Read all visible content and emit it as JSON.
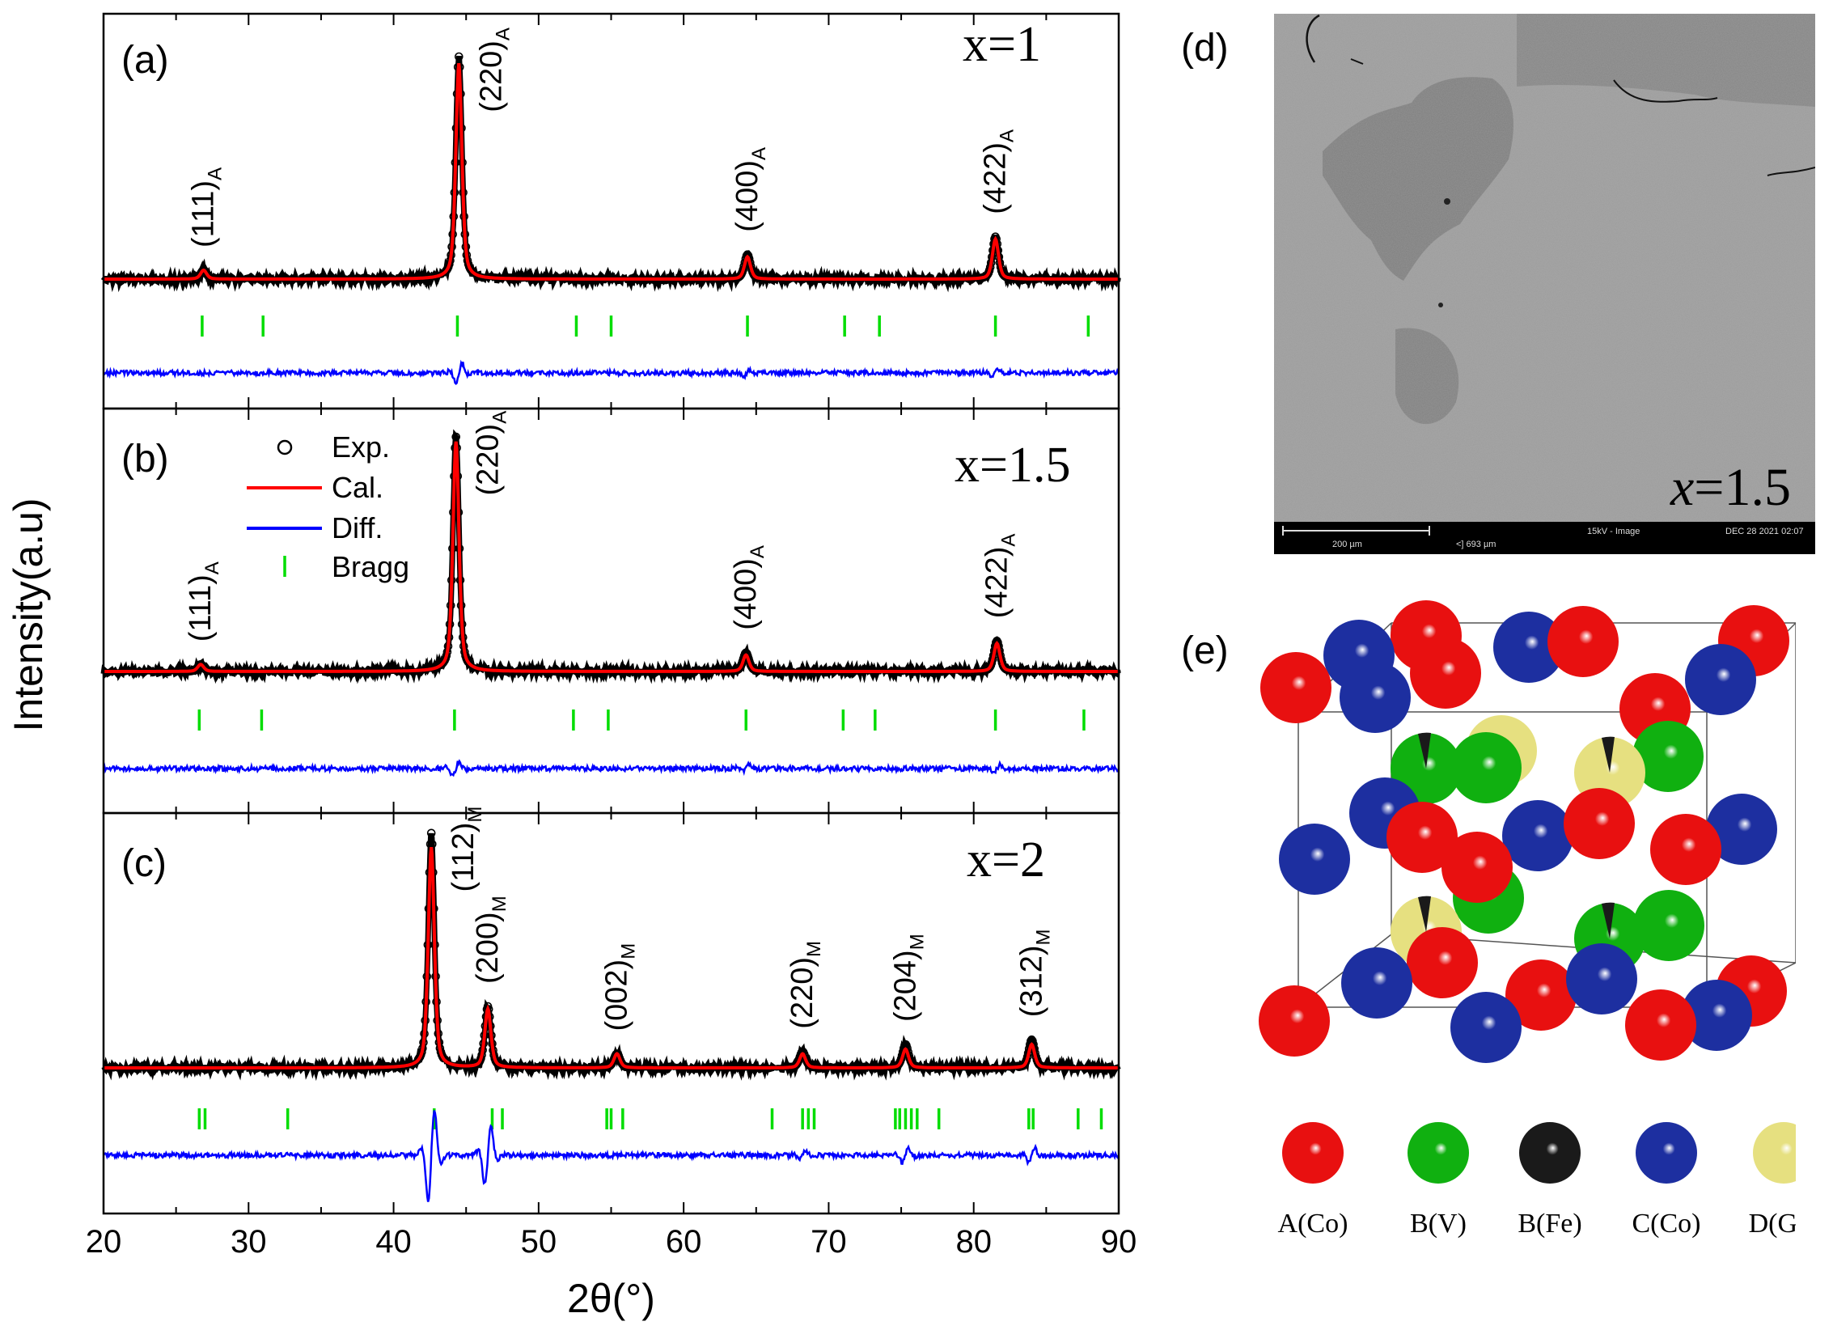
{
  "chart_data": [
    {
      "panel": "(a)",
      "type": "line",
      "composition_label": "x=1",
      "xlim": [
        20,
        90
      ],
      "xlabel": "2θ(°)",
      "ylabel": "Intensity(a.u)",
      "xticks": [
        20,
        30,
        40,
        50,
        60,
        70,
        80,
        90
      ],
      "series": [
        {
          "name": "Exp.",
          "marker": "open-circle",
          "color": "#000000",
          "peaks": [
            {
              "x": 26.9,
              "h": 0.04
            },
            {
              "x": 44.5,
              "h": 1.0
            },
            {
              "x": 64.4,
              "h": 0.11
            },
            {
              "x": 81.5,
              "h": 0.19
            }
          ]
        },
        {
          "name": "Cal.",
          "color": "#ff0000",
          "peaks": [
            {
              "x": 26.9,
              "h": 0.04
            },
            {
              "x": 44.5,
              "h": 0.97
            },
            {
              "x": 64.4,
              "h": 0.1
            },
            {
              "x": 81.5,
              "h": 0.18
            }
          ]
        },
        {
          "name": "Diff.",
          "color": "#0000ff"
        },
        {
          "name": "Bragg",
          "color": "#00e000",
          "positions": [
            26.8,
            31.0,
            44.4,
            52.6,
            55.0,
            64.4,
            71.1,
            73.5,
            81.5,
            87.9
          ]
        }
      ],
      "annotations": [
        {
          "text": "(111)",
          "sub": "A",
          "x": 26.9
        },
        {
          "text": "(220)",
          "sub": "A",
          "x": 44.5
        },
        {
          "text": "(400)",
          "sub": "A",
          "x": 64.4
        },
        {
          "text": "(422)",
          "sub": "A",
          "x": 81.5
        }
      ]
    },
    {
      "panel": "(b)",
      "type": "line",
      "composition_label": "x=1.5",
      "xlim": [
        20,
        90
      ],
      "series": [
        {
          "name": "Exp.",
          "peaks": [
            {
              "x": 26.7,
              "h": 0.03
            },
            {
              "x": 44.3,
              "h": 1.0
            },
            {
              "x": 64.3,
              "h": 0.08
            },
            {
              "x": 81.6,
              "h": 0.13
            }
          ]
        },
        {
          "name": "Cal.",
          "peaks": [
            {
              "x": 26.7,
              "h": 0.03
            },
            {
              "x": 44.3,
              "h": 0.98
            },
            {
              "x": 64.3,
              "h": 0.07
            },
            {
              "x": 81.6,
              "h": 0.12
            }
          ]
        },
        {
          "name": "Diff."
        },
        {
          "name": "Bragg",
          "positions": [
            26.6,
            30.9,
            44.2,
            52.4,
            54.8,
            64.3,
            71.0,
            73.2,
            81.5,
            87.6
          ]
        }
      ],
      "annotations": [
        {
          "text": "(111)",
          "sub": "A",
          "x": 26.7
        },
        {
          "text": "(220)",
          "sub": "A",
          "x": 44.3
        },
        {
          "text": "(400)",
          "sub": "A",
          "x": 64.3
        },
        {
          "text": "(422)",
          "sub": "A",
          "x": 81.6
        }
      ],
      "legend": {
        "placement": "top-left",
        "items": [
          "Exp.",
          "Cal.",
          "Diff.",
          "Bragg"
        ]
      }
    },
    {
      "panel": "(c)",
      "type": "line",
      "composition_label": "x=2",
      "xlim": [
        20,
        90
      ],
      "series": [
        {
          "name": "Exp.",
          "peaks": [
            {
              "x": 42.6,
              "h": 1.0
            },
            {
              "x": 46.5,
              "h": 0.26
            },
            {
              "x": 55.4,
              "h": 0.06
            },
            {
              "x": 68.2,
              "h": 0.07
            },
            {
              "x": 75.3,
              "h": 0.1
            },
            {
              "x": 84.0,
              "h": 0.12
            }
          ]
        },
        {
          "name": "Cal.",
          "peaks": [
            {
              "x": 42.6,
              "h": 0.94
            },
            {
              "x": 46.5,
              "h": 0.25
            },
            {
              "x": 55.4,
              "h": 0.06
            },
            {
              "x": 68.2,
              "h": 0.06
            },
            {
              "x": 75.3,
              "h": 0.08
            },
            {
              "x": 84.0,
              "h": 0.1
            }
          ]
        },
        {
          "name": "Diff."
        },
        {
          "name": "Bragg",
          "positions": [
            26.6,
            27.0,
            32.7,
            42.8,
            46.8,
            47.5,
            54.7,
            55.0,
            55.8,
            66.1,
            68.2,
            68.6,
            69.0,
            74.6,
            74.9,
            75.3,
            75.7,
            76.1,
            77.6,
            83.8,
            84.1,
            87.2,
            88.8
          ]
        }
      ],
      "annotations": [
        {
          "text": "(112)",
          "sub": "M",
          "x": 42.6
        },
        {
          "text": "(200)",
          "sub": "M",
          "x": 46.5
        },
        {
          "text": "(002)",
          "sub": "M",
          "x": 55.4
        },
        {
          "text": "(220)",
          "sub": "M",
          "x": 68.2
        },
        {
          "text": "(204)",
          "sub": "M",
          "x": 75.3
        },
        {
          "text": "(312)",
          "sub": "M",
          "x": 84.0
        }
      ]
    }
  ],
  "sem": {
    "panel": "(d)",
    "label_var": "x",
    "label_val": "=1.5",
    "scalebar_text": "200 µm",
    "hfw_text": "<] 693 µm",
    "mode_text": "15kV - Image",
    "date_text": "DEC 28 2021 02:07"
  },
  "structure": {
    "panel": "(e)",
    "atom_colors": {
      "A(Co)": "#e81010",
      "B(V)": "#10b010",
      "B(Fe)": "#222222",
      "C(Co)": "#1d2fa0",
      "D(Ga)": "#e6e080"
    },
    "legend": [
      {
        "label": "A(Co)",
        "color": "#e81010"
      },
      {
        "label": "B(V)",
        "color": "#12b012"
      },
      {
        "label": "B(Fe)",
        "color": "#1a1a1a"
      },
      {
        "label": "C(Co)",
        "color": "#1d2fa0"
      },
      {
        "label": "D(Ga)",
        "color": "#e8e280"
      }
    ]
  }
}
